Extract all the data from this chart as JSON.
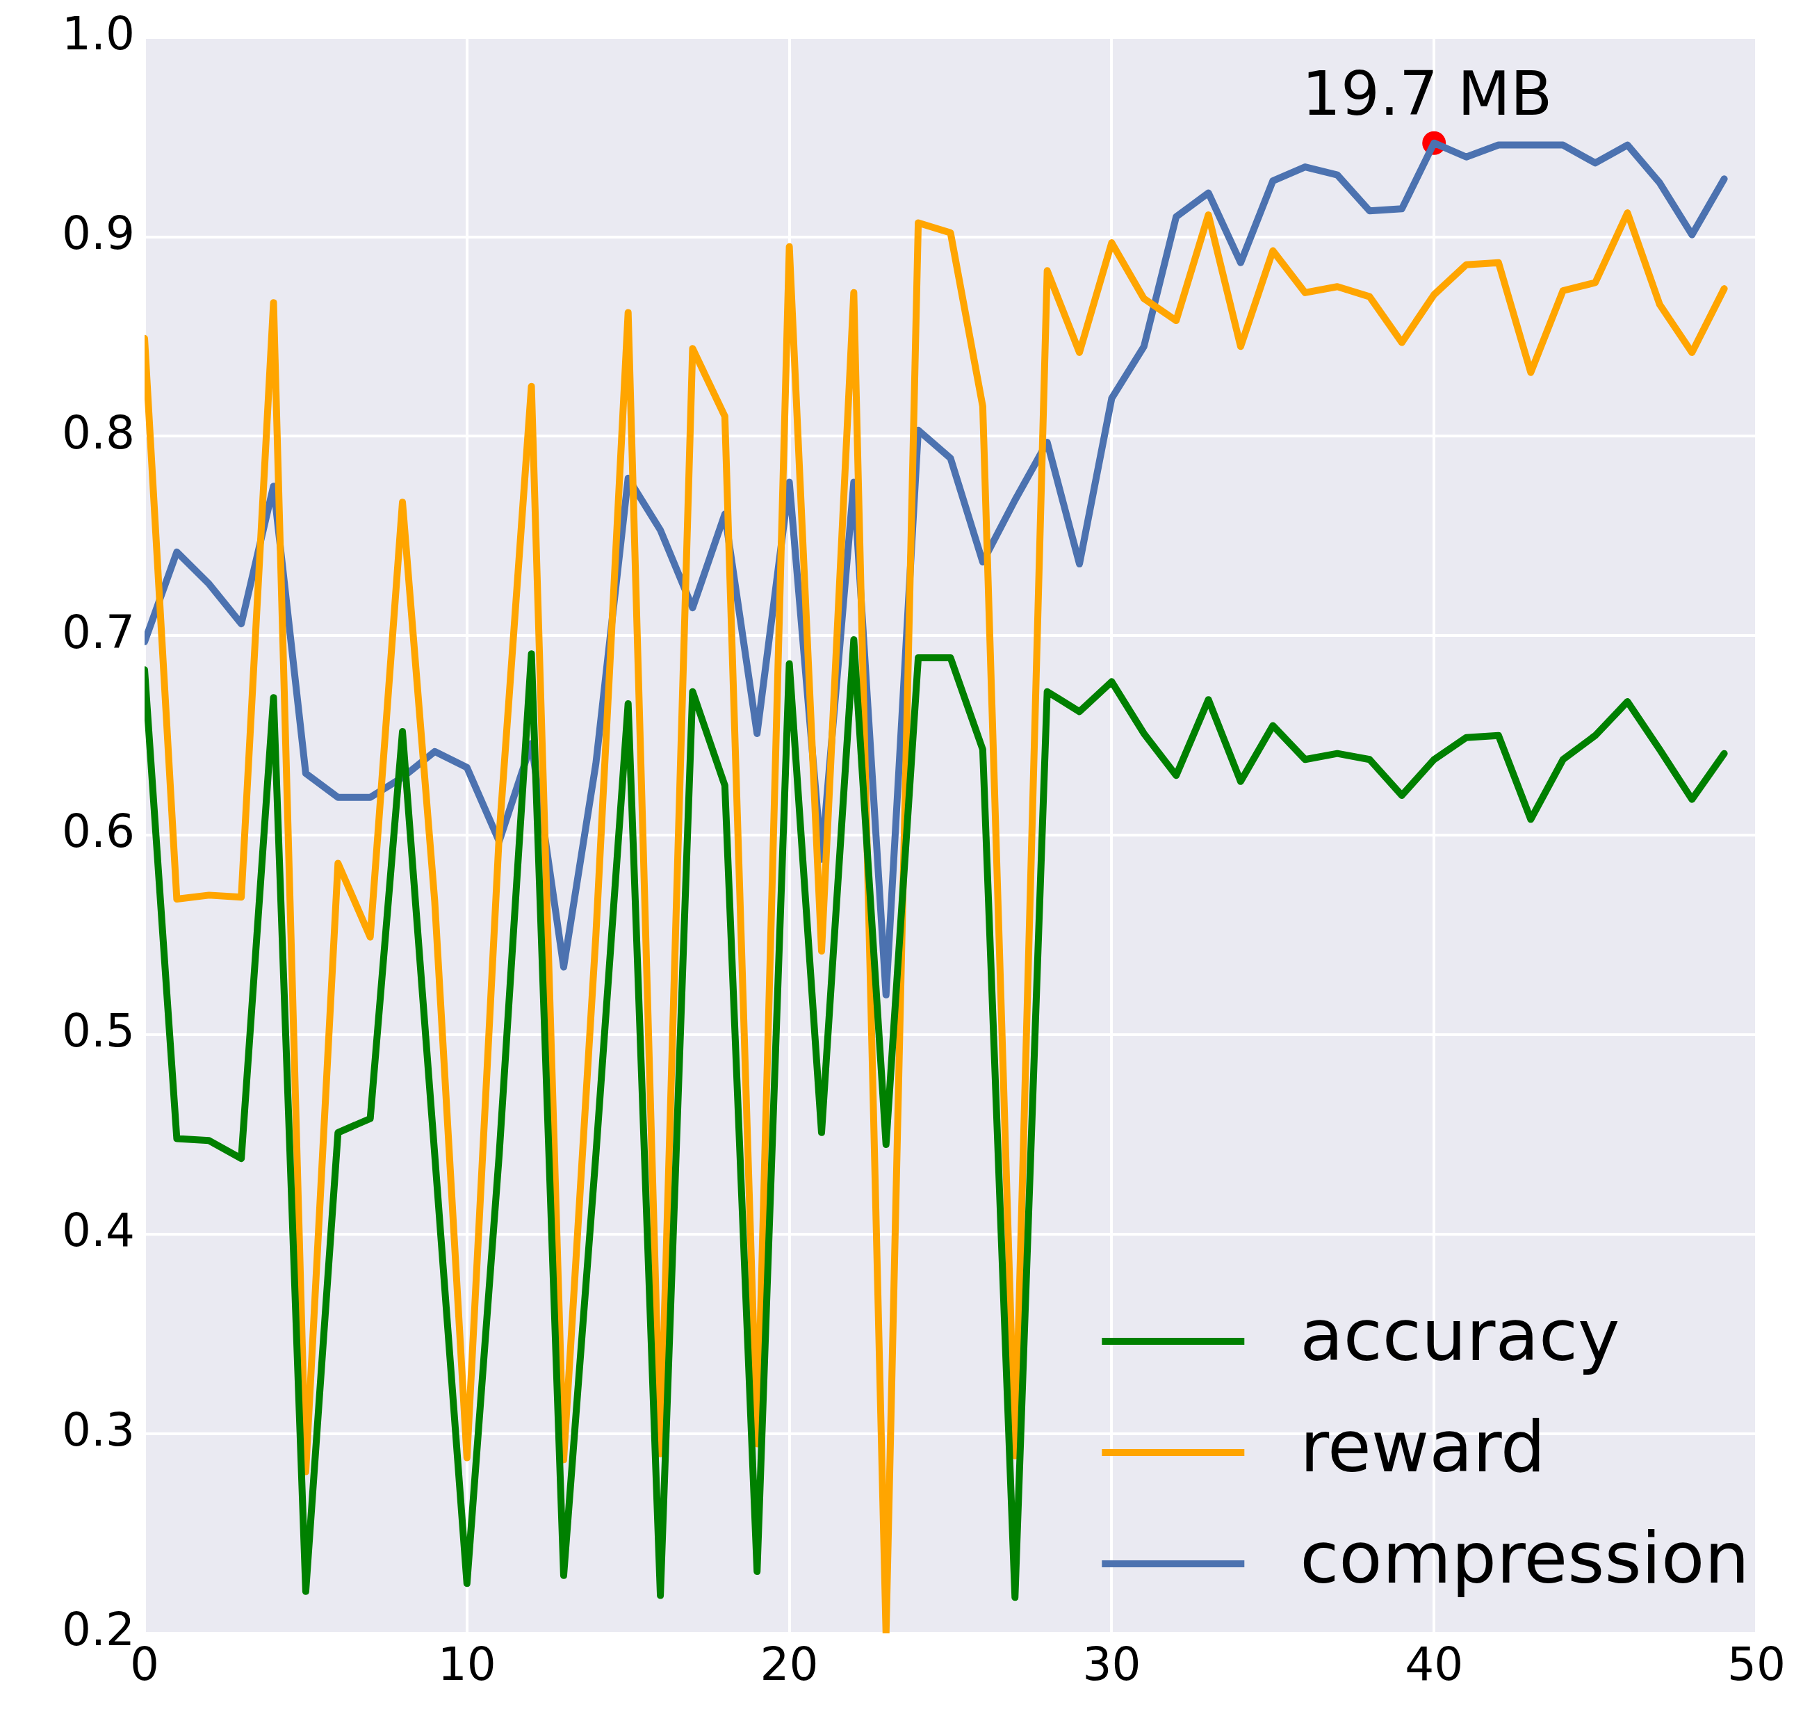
{
  "chart_data": {
    "type": "line",
    "x": [
      0,
      1,
      2,
      3,
      4,
      5,
      6,
      7,
      8,
      9,
      10,
      11,
      12,
      13,
      14,
      15,
      16,
      17,
      18,
      19,
      20,
      21,
      22,
      23,
      24,
      25,
      26,
      27,
      28,
      29,
      30,
      31,
      32,
      33,
      34,
      35,
      36,
      37,
      38,
      39,
      40,
      41,
      42,
      43,
      44,
      45,
      46,
      47,
      48,
      49
    ],
    "series": [
      {
        "name": "accuracy",
        "color": "#008000",
        "values": [
          0.683,
          0.448,
          0.447,
          0.438,
          0.669,
          0.221,
          0.451,
          0.458,
          0.652,
          0.44,
          0.225,
          0.44,
          0.691,
          0.229,
          0.44,
          0.666,
          0.219,
          0.672,
          0.625,
          0.231,
          0.686,
          0.451,
          0.698,
          0.445,
          0.689,
          0.689,
          0.643,
          0.218,
          0.672,
          0.662,
          0.677,
          0.651,
          0.63,
          0.668,
          0.627,
          0.655,
          0.638,
          0.641,
          0.638,
          0.62,
          0.638,
          0.649,
          0.65,
          0.608,
          0.638,
          0.65,
          0.667,
          0.643,
          0.618,
          0.641
        ]
      },
      {
        "name": "reward",
        "color": "#ffa500",
        "values": [
          0.849,
          0.568,
          0.57,
          0.569,
          0.867,
          0.281,
          0.586,
          0.549,
          0.767,
          0.567,
          0.288,
          0.6,
          0.825,
          0.287,
          0.55,
          0.862,
          0.29,
          0.844,
          0.81,
          0.295,
          0.895,
          0.542,
          0.872,
          0.2,
          0.907,
          0.902,
          0.815,
          0.289,
          0.883,
          0.842,
          0.897,
          0.869,
          0.858,
          0.911,
          0.845,
          0.893,
          0.872,
          0.875,
          0.87,
          0.847,
          0.871,
          0.886,
          0.887,
          0.832,
          0.873,
          0.877,
          0.912,
          0.866,
          0.842,
          0.874
        ]
      },
      {
        "name": "compression",
        "color": "#4c72b0",
        "values": [
          0.697,
          0.742,
          0.726,
          0.706,
          0.775,
          0.631,
          0.619,
          0.619,
          0.629,
          0.642,
          0.634,
          0.597,
          0.646,
          0.534,
          0.636,
          0.779,
          0.753,
          0.714,
          0.761,
          0.651,
          0.777,
          0.588,
          0.777,
          0.52,
          0.803,
          0.789,
          0.737,
          0.768,
          0.797,
          0.736,
          0.819,
          0.845,
          0.91,
          0.922,
          0.887,
          0.928,
          0.935,
          0.931,
          0.913,
          0.914,
          0.947,
          0.94,
          0.946,
          0.946,
          0.946,
          0.937,
          0.946,
          0.927,
          0.901,
          0.929
        ]
      }
    ],
    "xlim": [
      0,
      50
    ],
    "xticks": [
      0,
      10,
      20,
      30,
      40,
      50
    ],
    "ylim": [
      0.2,
      1.0
    ],
    "yticks": [
      {
        "value": 0.2,
        "label": "0.2"
      },
      {
        "value": 0.3,
        "label": "0.3"
      },
      {
        "value": 0.4,
        "label": "0.4"
      },
      {
        "value": 0.5,
        "label": "0.5"
      },
      {
        "value": 0.6,
        "label": "0.6"
      },
      {
        "value": 0.7,
        "label": "0.7"
      },
      {
        "value": 0.8,
        "label": "0.8"
      },
      {
        "value": 0.9,
        "label": "0.9"
      },
      {
        "value": 1.0,
        "label": "1.0"
      }
    ],
    "annotations": [
      {
        "text": "19.7 MB",
        "x": 40,
        "y": 0.947
      }
    ],
    "grid": true,
    "legend": "bottom right",
    "marker": "none",
    "line_style": "solid"
  }
}
